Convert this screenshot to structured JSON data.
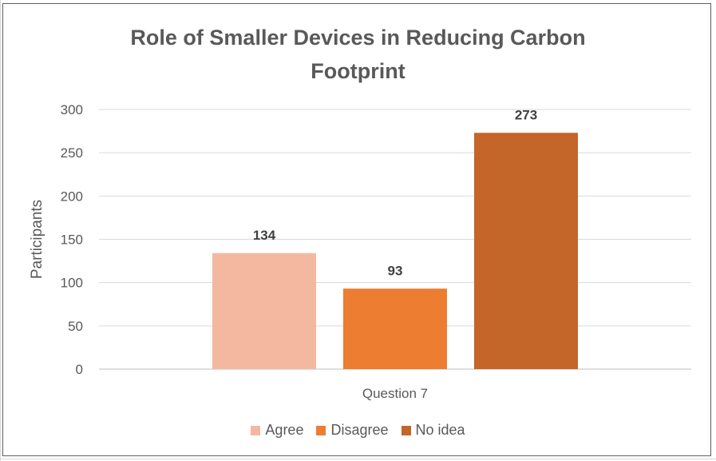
{
  "chart_data": {
    "type": "bar",
    "title": "Role of Smaller Devices in Reducing Carbon Footprint",
    "title_lines": [
      "Role of Smaller Devices in Reducing Carbon",
      "Footprint"
    ],
    "categories": [
      "Question 7"
    ],
    "series": [
      {
        "name": "Agree",
        "values": [
          134
        ],
        "color": "#F4B8A0"
      },
      {
        "name": "Disagree",
        "values": [
          93
        ],
        "color": "#ED7D31"
      },
      {
        "name": "No idea",
        "values": [
          273
        ],
        "color": "#C4652A"
      }
    ],
    "xlabel": "Question 7",
    "ylabel": "Participants",
    "ylim": [
      0,
      300
    ],
    "yticks": [
      0,
      50,
      100,
      150,
      200,
      250,
      300
    ],
    "grid": true,
    "legend_position": "bottom",
    "data_labels": true
  }
}
